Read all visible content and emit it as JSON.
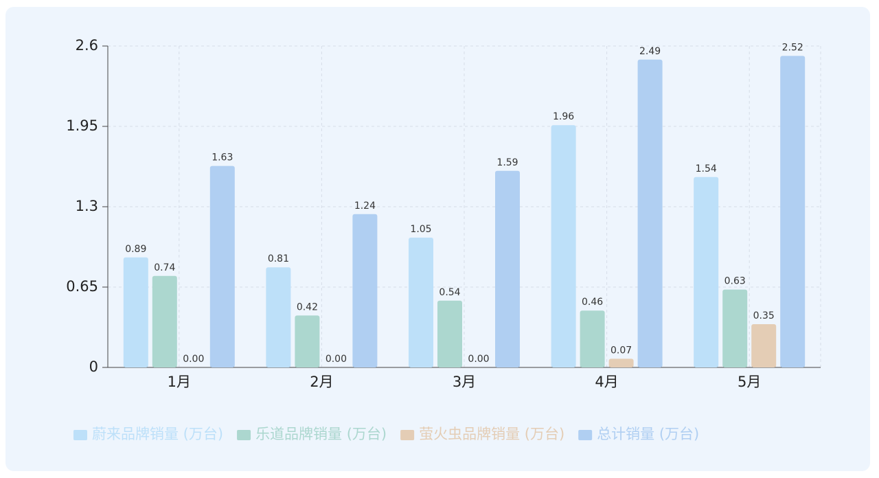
{
  "chart_data": {
    "type": "bar",
    "categories": [
      "1月",
      "2月",
      "3月",
      "4月",
      "5月"
    ],
    "series": [
      {
        "name": "蔚来品牌销量 (万台)",
        "color": "#bde0f9",
        "values": [
          0.89,
          0.81,
          1.05,
          1.96,
          1.54
        ],
        "value_labels": [
          "0.89",
          "0.81",
          "1.05",
          "1.96",
          "1.54"
        ]
      },
      {
        "name": "乐道品牌销量 (万台)",
        "color": "#acd7cf",
        "values": [
          0.74,
          0.42,
          0.54,
          0.46,
          0.63
        ],
        "value_labels": [
          "0.74",
          "0.42",
          "0.54",
          "0.46",
          "0.63"
        ]
      },
      {
        "name": "萤火虫品牌销量 (万台)",
        "color": "#e4cdb5",
        "values": [
          0,
          0,
          0,
          0.07,
          0.35
        ],
        "value_labels": [
          "0.00",
          "0.00",
          "0.00",
          "0.07",
          "0.35"
        ]
      },
      {
        "name": "总计销量 (万台)",
        "color": "#b0cff2",
        "values": [
          1.63,
          1.24,
          1.59,
          2.49,
          2.52
        ],
        "value_labels": [
          "1.63",
          "1.24",
          "1.59",
          "2.49",
          "2.52"
        ]
      }
    ],
    "ylim": [
      0,
      2.6
    ],
    "yticks": [
      0,
      0.65,
      1.3,
      1.95,
      2.6
    ],
    "grid": true,
    "legend": "bottom"
  }
}
